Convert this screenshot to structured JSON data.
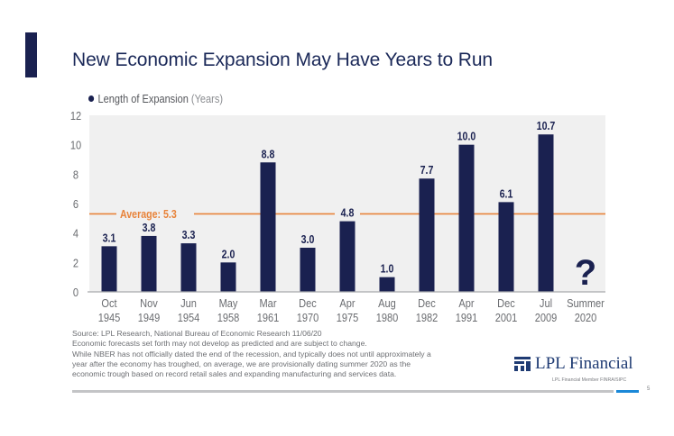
{
  "slide": {
    "title": "New Economic Expansion May Have Years to Run",
    "legend_label": "Length of Expansion",
    "legend_unit": "(Years)",
    "footnotes": [
      "Source: LPL Research, National Bureau of Economic Research   11/06/20",
      "Economic forecasts set forth may not develop as predicted and are subject to change.",
      "While NBER has not officially dated the end of the recession, and typically does not until approximately a",
      "year after the economy has troughed, on average, we are provisionally dating summer 2020 as the",
      "economic trough based on record retail sales and expanding manufacturing and services data."
    ],
    "logo_text": "LPL Financial",
    "member_text": "LPL Financial  Member FINRA/SIPC",
    "page_number": "5"
  },
  "colors": {
    "bar": "#1a2150",
    "average_line": "#e8833a",
    "plot_bg": "#f0f0f0",
    "axis_text": "#6a6c70",
    "data_label": "#1a2150",
    "title": "#1a2858",
    "logo": "#1f3b73",
    "footer_accent": "#1a88d8"
  },
  "chart_data": {
    "type": "bar",
    "title": "New Economic Expansion May Have Years to Run",
    "xlabel": "",
    "ylabel": "",
    "ylim": [
      0,
      12
    ],
    "yticks": [
      0,
      2,
      4,
      6,
      8,
      10,
      12
    ],
    "grid": false,
    "legend": {
      "position": "top-left",
      "entries": [
        "Length of Expansion (Years)"
      ]
    },
    "categories": [
      [
        "Oct",
        "1945"
      ],
      [
        "Nov",
        "1949"
      ],
      [
        "Jun",
        "1954"
      ],
      [
        "May",
        "1958"
      ],
      [
        "Mar",
        "1961"
      ],
      [
        "Dec",
        "1970"
      ],
      [
        "Apr",
        "1975"
      ],
      [
        "Aug",
        "1980"
      ],
      [
        "Dec",
        "1982"
      ],
      [
        "Apr",
        "1991"
      ],
      [
        "Dec",
        "2001"
      ],
      [
        "Jul",
        "2009"
      ],
      [
        "Summer",
        "2020"
      ]
    ],
    "series": [
      {
        "name": "Length of Expansion (Years)",
        "values": [
          3.1,
          3.8,
          3.3,
          2.0,
          8.8,
          3.0,
          4.8,
          1.0,
          7.7,
          10.0,
          6.1,
          10.7,
          null
        ],
        "labels": [
          "3.1",
          "3.8",
          "3.3",
          "2.0",
          "8.8",
          "3.0",
          "4.8",
          "1.0",
          "7.7",
          "10.0",
          "6.1",
          "10.7",
          "?"
        ]
      }
    ],
    "reference_line": {
      "value": 5.3,
      "label": "Average: 5.3"
    }
  }
}
